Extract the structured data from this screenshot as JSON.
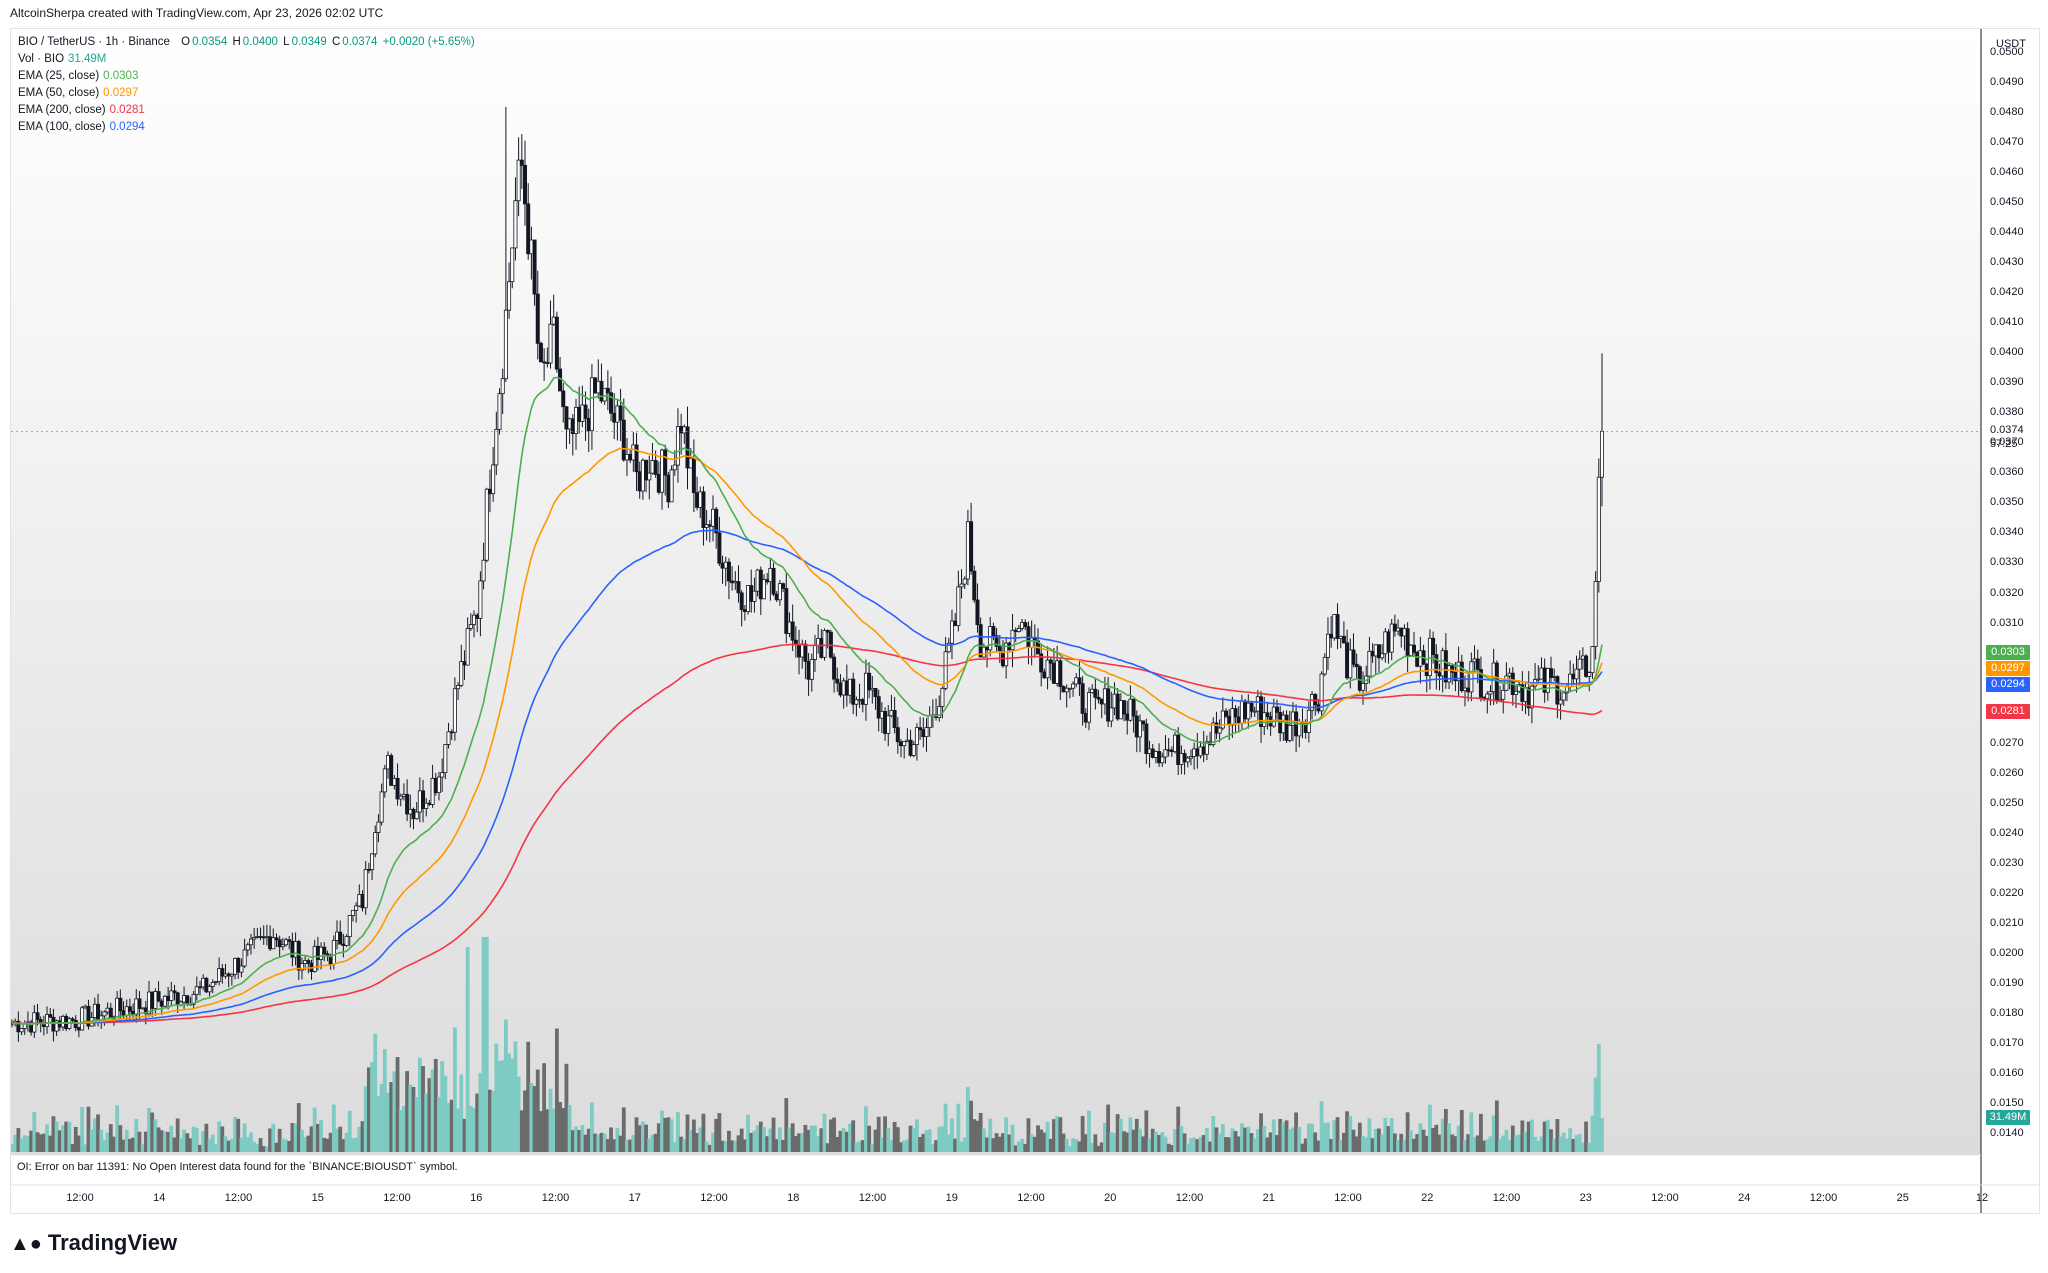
{
  "header": {
    "credit": "AltcoinSherpa created with TradingView.com, Apr 23, 2026 02:02 UTC"
  },
  "legend": {
    "symbol": "BIO / TetherUS · 1h · Binance",
    "open_label": "O",
    "open": "0.0354",
    "high_label": "H",
    "high": "0.0400",
    "low_label": "L",
    "low": "0.0349",
    "close_label": "C",
    "close": "0.0374",
    "change": "+0.0020 (+5.65%)",
    "vol_label": "Vol · BIO",
    "vol_value": "31.49M",
    "ema25_label": "EMA (25, close)",
    "ema25_value": "0.0303",
    "ema50_label": "EMA (50, close)",
    "ema50_value": "0.0297",
    "ema200_label": "EMA (200, close)",
    "ema200_value": "0.0281",
    "ema100_label": "EMA (100, close)",
    "ema100_value": "0.0294"
  },
  "axis": {
    "currency": "USDT",
    "current_price": "0.0374",
    "countdown": "57:25",
    "badges": {
      "ema25": "0.0303",
      "ema50": "0.0297",
      "ema100": "0.0294",
      "ema200": "0.0281",
      "volume": "31.49M"
    }
  },
  "oi_error": "OI: Error on bar 11391: No Open Interest data found for the `BINANCE:BIOUSDT` symbol.",
  "brand": "TradingView",
  "colors": {
    "up": "#26a69a",
    "down": "#131722",
    "ema25": "#4caf50",
    "ema50": "#ff9800",
    "ema100": "#2962ff",
    "ema200": "#f23645",
    "vol_up": "#7ecbc3",
    "vol_down": "#6b6b6b"
  },
  "chart_data": {
    "type": "candlestick",
    "interval": "1h",
    "ylim": [
      0.0135,
      0.0505
    ],
    "y_ticks": [
      "0.0140",
      "0.0150",
      "0.0160",
      "0.0170",
      "0.0180",
      "0.0190",
      "0.0200",
      "0.0210",
      "0.0220",
      "0.0230",
      "0.0240",
      "0.0250",
      "0.0260",
      "0.0270",
      "0.0280",
      "0.0290",
      "0.0300",
      "0.0310",
      "0.0320",
      "0.0330",
      "0.0340",
      "0.0350",
      "0.0360",
      "0.0370",
      "0.0380",
      "0.0390",
      "0.0400",
      "0.0410",
      "0.0420",
      "0.0430",
      "0.0440",
      "0.0450",
      "0.0460",
      "0.0470",
      "0.0480",
      "0.0490",
      "0.0500"
    ],
    "x_ticks": [
      "12:00",
      "14",
      "12:00",
      "15",
      "12:00",
      "16",
      "12:00",
      "17",
      "12:00",
      "18",
      "12:00",
      "19",
      "12:00",
      "20",
      "12:00",
      "21",
      "12:00",
      "22",
      "12:00",
      "23",
      "12:00",
      "24",
      "12:00",
      "25",
      "12"
    ],
    "price_keypoints": [
      [
        0,
        0.0177
      ],
      [
        20,
        0.0178
      ],
      [
        40,
        0.0183
      ],
      [
        60,
        0.0188
      ],
      [
        72,
        0.0198
      ],
      [
        82,
        0.0207
      ],
      [
        92,
        0.0197
      ],
      [
        100,
        0.02
      ],
      [
        110,
        0.0218
      ],
      [
        114,
        0.0245
      ],
      [
        118,
        0.0262
      ],
      [
        126,
        0.0248
      ],
      [
        134,
        0.026
      ],
      [
        140,
        0.029
      ],
      [
        146,
        0.0315
      ],
      [
        150,
        0.036
      ],
      [
        154,
        0.04
      ],
      [
        158,
        0.045
      ],
      [
        160,
        0.0462
      ],
      [
        163,
        0.043
      ],
      [
        166,
        0.039
      ],
      [
        170,
        0.0405
      ],
      [
        174,
        0.037
      ],
      [
        178,
        0.0375
      ],
      [
        184,
        0.0388
      ],
      [
        188,
        0.038
      ],
      [
        192,
        0.0372
      ],
      [
        196,
        0.0358
      ],
      [
        200,
        0.0365
      ],
      [
        206,
        0.0358
      ],
      [
        210,
        0.0378
      ],
      [
        214,
        0.0352
      ],
      [
        220,
        0.0342
      ],
      [
        226,
        0.0325
      ],
      [
        232,
        0.0318
      ],
      [
        238,
        0.033
      ],
      [
        244,
        0.031
      ],
      [
        250,
        0.0295
      ],
      [
        256,
        0.0303
      ],
      [
        262,
        0.0285
      ],
      [
        268,
        0.0288
      ],
      [
        274,
        0.0278
      ],
      [
        280,
        0.027
      ],
      [
        286,
        0.0272
      ],
      [
        292,
        0.029
      ],
      [
        296,
        0.031
      ],
      [
        300,
        0.0338
      ],
      [
        304,
        0.0305
      ],
      [
        310,
        0.03
      ],
      [
        316,
        0.0312
      ],
      [
        322,
        0.03
      ],
      [
        328,
        0.0296
      ],
      [
        334,
        0.0286
      ],
      [
        340,
        0.0281
      ],
      [
        346,
        0.0285
      ],
      [
        352,
        0.0278
      ],
      [
        358,
        0.027
      ],
      [
        364,
        0.0267
      ],
      [
        370,
        0.027
      ],
      [
        376,
        0.0272
      ],
      [
        382,
        0.0278
      ],
      [
        388,
        0.0282
      ],
      [
        394,
        0.028
      ],
      [
        400,
        0.0276
      ],
      [
        406,
        0.028
      ],
      [
        410,
        0.0287
      ],
      [
        414,
        0.0312
      ],
      [
        418,
        0.03
      ],
      [
        422,
        0.029
      ],
      [
        428,
        0.0298
      ],
      [
        432,
        0.0305
      ],
      [
        436,
        0.0308
      ],
      [
        440,
        0.0302
      ],
      [
        446,
        0.0298
      ],
      [
        452,
        0.0292
      ],
      [
        458,
        0.0294
      ],
      [
        464,
        0.029
      ],
      [
        470,
        0.0292
      ],
      [
        476,
        0.0288
      ],
      [
        482,
        0.029
      ],
      [
        488,
        0.0289
      ],
      [
        492,
        0.0292
      ],
      [
        496,
        0.03
      ],
      [
        498,
        0.0354
      ],
      [
        499,
        0.0374
      ]
    ],
    "wick_high": 0.0482,
    "wick_low": 0.0173,
    "last_bar": {
      "open": 0.0354,
      "high": 0.04,
      "low": 0.0349,
      "close": 0.0374
    },
    "ema_current": {
      "ema25": 0.0303,
      "ema50": 0.0297,
      "ema100": 0.0294,
      "ema200": 0.0281
    }
  }
}
